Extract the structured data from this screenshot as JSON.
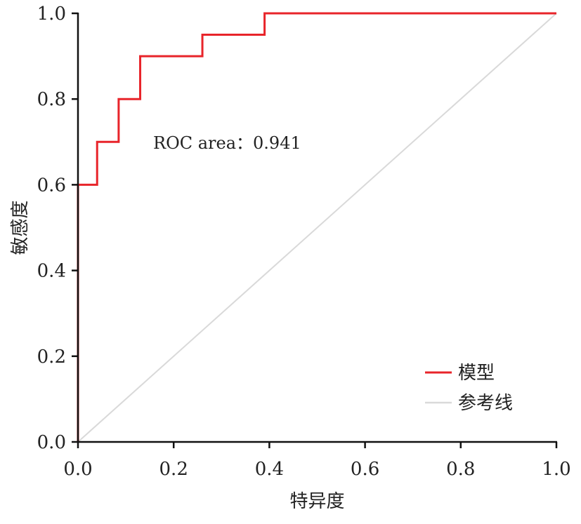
{
  "chart_data": {
    "type": "line",
    "title": "",
    "xlabel": "特异度",
    "ylabel": "敏感度",
    "xlim": [
      0,
      1
    ],
    "ylim": [
      0,
      1
    ],
    "xticks": [
      0.0,
      0.2,
      0.4,
      0.6,
      0.8,
      1.0
    ],
    "yticks": [
      0.0,
      0.2,
      0.4,
      0.6,
      0.8,
      1.0
    ],
    "xtick_labels": [
      "0.0",
      "0.2",
      "0.4",
      "0.6",
      "0.8",
      "1.0"
    ],
    "ytick_labels": [
      "0.0",
      "0.2",
      "0.4",
      "0.6",
      "0.8",
      "1.0"
    ],
    "grid": false,
    "legend_position": "bottom-right",
    "annotation": "ROC area：0.941",
    "series": [
      {
        "name": "模型",
        "color": "#e8242a",
        "x": [
          0.0,
          0.0,
          0.04,
          0.04,
          0.085,
          0.085,
          0.13,
          0.13,
          0.26,
          0.26,
          0.39,
          0.39,
          1.0
        ],
        "y": [
          0.0,
          0.6,
          0.6,
          0.7,
          0.7,
          0.8,
          0.8,
          0.9,
          0.9,
          0.95,
          0.95,
          1.0,
          1.0
        ]
      },
      {
        "name": "参考线",
        "color": "#d9d9d9",
        "x": [
          0.0,
          1.0
        ],
        "y": [
          0.0,
          1.0
        ]
      }
    ]
  }
}
